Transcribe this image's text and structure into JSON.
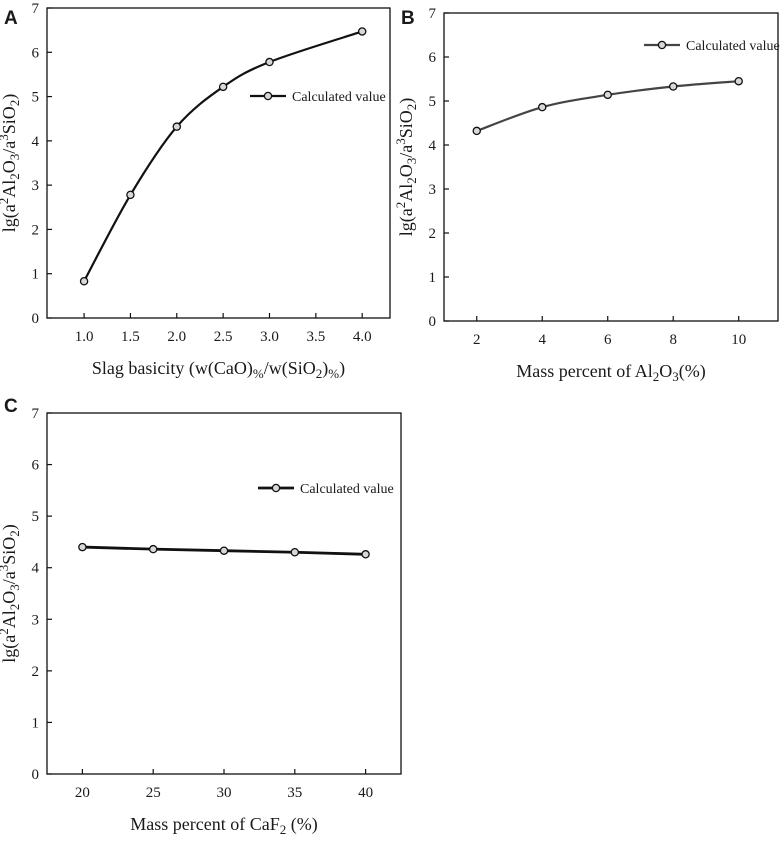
{
  "chart_data": [
    {
      "panel": "A",
      "type": "line",
      "xlabel": "Slag basicity (w(CaO)%/w(SiO2)%)",
      "ylabel": "lg(a²Al2O3/a³SiO2)",
      "xlim": [
        0.6,
        4.3
      ],
      "ylim": [
        0,
        7
      ],
      "x_ticks": [
        "1.0",
        "1.5",
        "2.0",
        "2.5",
        "3.0",
        "3.5",
        "4.0"
      ],
      "y_ticks": [
        "0",
        "1",
        "2",
        "3",
        "4",
        "5",
        "6",
        "7"
      ],
      "legend": "right",
      "series": [
        {
          "name": "Calculated value",
          "x": [
            1.0,
            1.5,
            2.0,
            2.5,
            3.0,
            4.0
          ],
          "values": [
            0.83,
            2.78,
            4.32,
            5.22,
            5.78,
            6.47
          ],
          "smooth": true
        }
      ]
    },
    {
      "panel": "B",
      "type": "line",
      "xlabel": "Mass percent of Al2O3(%)",
      "ylabel": "lg(a²Al2O3/a³SiO2)",
      "xlim": [
        1,
        11.2
      ],
      "ylim": [
        0,
        7
      ],
      "x_ticks": [
        "2",
        "4",
        "6",
        "8",
        "10"
      ],
      "y_ticks": [
        "0",
        "1",
        "2",
        "3",
        "4",
        "5",
        "6",
        "7"
      ],
      "legend": "top-right",
      "series": [
        {
          "name": "Calculated value",
          "x": [
            2,
            4,
            6,
            8,
            10
          ],
          "values": [
            4.32,
            4.86,
            5.14,
            5.33,
            5.45
          ],
          "smooth": true
        }
      ]
    },
    {
      "panel": "C",
      "type": "line",
      "xlabel": "Mass percent of CaF2 (%)",
      "ylabel": "lg(a²Al2O3/a³SiO2)",
      "xlim": [
        17.5,
        42.5
      ],
      "ylim": [
        0,
        7
      ],
      "x_ticks": [
        "20",
        "25",
        "30",
        "35",
        "40"
      ],
      "y_ticks": [
        "0",
        "1",
        "2",
        "3",
        "4",
        "5",
        "6",
        "7"
      ],
      "legend": "top-right",
      "series": [
        {
          "name": "Calculated value",
          "x": [
            20,
            25,
            30,
            35,
            40
          ],
          "values": [
            4.4,
            4.36,
            4.33,
            4.3,
            4.26
          ],
          "smooth": false
        }
      ]
    }
  ]
}
